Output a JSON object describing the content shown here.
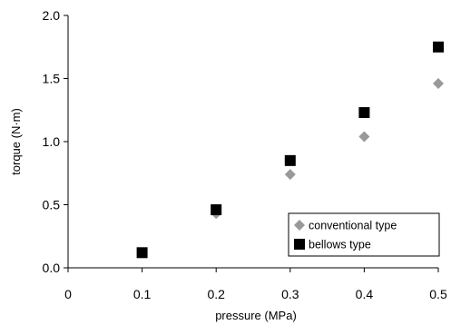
{
  "chart_data": {
    "type": "scatter",
    "title": "",
    "xlabel": "pressure (MPa)",
    "ylabel": "torque (N·m)",
    "xlim": [
      0,
      0.5
    ],
    "ylim": [
      0,
      2.0
    ],
    "xticks": [
      "0",
      "0.1",
      "0.2",
      "0.3",
      "0.4",
      "0.5"
    ],
    "yticks": [
      "0.0",
      "0.5",
      "1.0",
      "1.5",
      "2.0"
    ],
    "grid": false,
    "legend_position": "bottom-right",
    "series": [
      {
        "name": "conventional type",
        "marker": "diamond",
        "color": "#999999",
        "x": [
          0.1,
          0.2,
          0.3,
          0.4,
          0.5
        ],
        "y": [
          0.12,
          0.43,
          0.74,
          1.04,
          1.46
        ]
      },
      {
        "name": "bellows type",
        "marker": "square",
        "color": "#000000",
        "x": [
          0.1,
          0.2,
          0.3,
          0.4,
          0.5
        ],
        "y": [
          0.12,
          0.46,
          0.85,
          1.23,
          1.75
        ]
      }
    ]
  }
}
